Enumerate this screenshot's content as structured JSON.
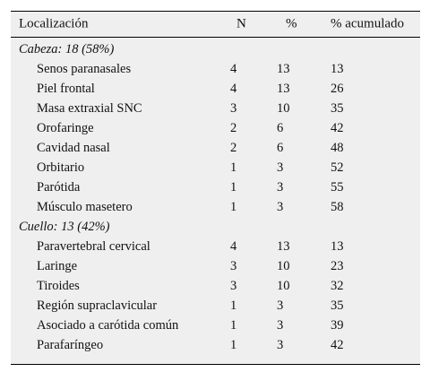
{
  "table": {
    "headers": {
      "localizacion": "Localización",
      "n": "N",
      "pct": "%",
      "acumulado": "% acumulado"
    },
    "groups": [
      {
        "label": "Cabeza: 18 (58%)",
        "rows": [
          {
            "name": "Senos paranasales",
            "n": "4",
            "pct": "13",
            "acc": "13"
          },
          {
            "name": "Piel frontal",
            "n": "4",
            "pct": "13",
            "acc": "26"
          },
          {
            "name": "Masa extraxial SNC",
            "n": "3",
            "pct": "10",
            "acc": "35"
          },
          {
            "name": "Orofaringe",
            "n": "2",
            "pct": "6",
            "acc": "42"
          },
          {
            "name": "Cavidad nasal",
            "n": "2",
            "pct": "6",
            "acc": "48"
          },
          {
            "name": "Orbitario",
            "n": "1",
            "pct": "3",
            "acc": "52"
          },
          {
            "name": "Parótida",
            "n": "1",
            "pct": "3",
            "acc": "55"
          },
          {
            "name": "Músculo masetero",
            "n": "1",
            "pct": "3",
            "acc": "58"
          }
        ]
      },
      {
        "label": "Cuello: 13 (42%)",
        "rows": [
          {
            "name": "Paravertebral cervical",
            "n": "4",
            "pct": "13",
            "acc": "13"
          },
          {
            "name": "Laringe",
            "n": "3",
            "pct": "10",
            "acc": "23"
          },
          {
            "name": "Tiroides",
            "n": "3",
            "pct": "10",
            "acc": "32"
          },
          {
            "name": "Región supraclavicular",
            "n": "1",
            "pct": "3",
            "acc": "35"
          },
          {
            "name": "Asociado a carótida común",
            "n": "1",
            "pct": "3",
            "acc": "39"
          },
          {
            "name": "Parafaríngeo",
            "n": "1",
            "pct": "3",
            "acc": "42"
          }
        ]
      }
    ]
  }
}
